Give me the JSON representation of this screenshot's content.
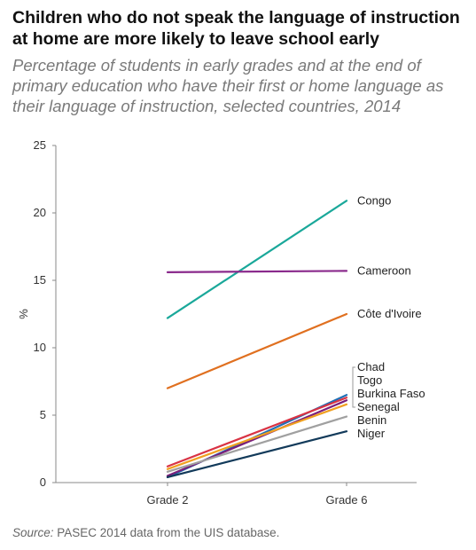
{
  "header": {
    "title": "Children who do not speak the language of instruction at home are more likely to leave school early",
    "subtitle": "Percentage of students in early grades and at the end of primary education who have their first or home language as their language of instruction, selected countries, 2014"
  },
  "footer": {
    "source_label": "Source:",
    "source_text": " PASEC 2014 data from the UIS database."
  },
  "chart_data": {
    "type": "line",
    "title": "Children who do not speak the language of instruction at home are more likely to leave school early",
    "subtitle": "Percentage of students in early grades and at the end of primary education who have their first or home language as their language of instruction, selected countries, 2014",
    "ylabel": "%",
    "xlabel": "",
    "categories": [
      "Grade 2",
      "Grade 6"
    ],
    "ylim": [
      0,
      25
    ],
    "yticks": [
      0,
      5,
      10,
      15,
      20,
      25
    ],
    "grid": false,
    "legend": "direct labels at line ends",
    "series": [
      {
        "name": "Congo",
        "values": [
          12.2,
          20.9
        ],
        "color": "#1aa89a"
      },
      {
        "name": "Cameroon",
        "values": [
          15.6,
          15.7
        ],
        "color": "#8a2a8c"
      },
      {
        "name": "Côte d'Ivoire",
        "values": [
          7.0,
          12.5
        ],
        "color": "#e07020"
      },
      {
        "name": "Chad",
        "values": [
          0.4,
          6.5
        ],
        "color": "#1f6fb5"
      },
      {
        "name": "Togo",
        "values": [
          1.2,
          6.3
        ],
        "color": "#d93344"
      },
      {
        "name": "Burkina Faso",
        "values": [
          0.5,
          6.1
        ],
        "color": "#7a1f7a"
      },
      {
        "name": "Senegal",
        "values": [
          1.0,
          5.8
        ],
        "color": "#f0a020"
      },
      {
        "name": "Benin",
        "values": [
          0.8,
          4.9
        ],
        "color": "#a0a0a0"
      },
      {
        "name": "Niger",
        "values": [
          0.4,
          3.8
        ],
        "color": "#123a5a"
      }
    ]
  }
}
